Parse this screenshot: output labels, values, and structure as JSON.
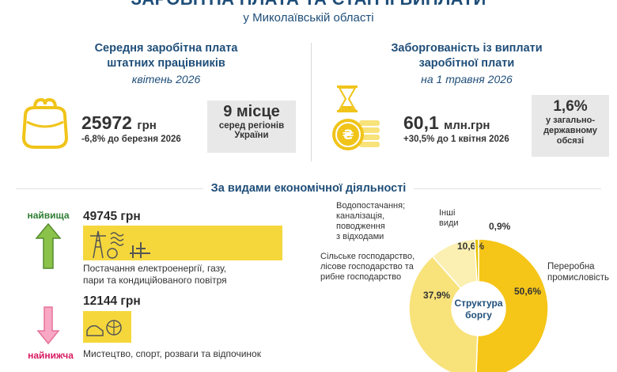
{
  "header": {
    "title": "ЗАРОБІТНА ПЛАТА ТА СТАН ЇЇ ВИПЛАТИ",
    "subtitle": "у Миколаївській області"
  },
  "salary": {
    "heading_line1": "Середня заробітна плата",
    "heading_line2": "штатних працівників",
    "period": "квітень 2026",
    "value": "25972",
    "unit": "грн",
    "change": "-6,8%  до березня 2026",
    "rank_value": "9 місце",
    "rank_line1": "серед регіонів",
    "rank_line2": "України",
    "icon": "wallet-icon"
  },
  "debt": {
    "heading_line1": "Заборгованість із виплати",
    "heading_line2": "заробітної плати",
    "period": "на 1 травня 2026",
    "value": "60,1",
    "unit": "млн.грн",
    "change": "+30,5%  до 1 квітня 2026",
    "share_value": "1,6%",
    "share_line1": "у загально-",
    "share_line2": "державному",
    "share_line3": "обсязі",
    "icon": "hourglass-coins-icon"
  },
  "activity": {
    "heading": "За видами економічної діяльності",
    "highest_label": "найвища",
    "lowest_label": "найнижча",
    "highest_value": "49745 грн",
    "highest_desc_line1": "Постачання електроенергії, газу,",
    "highest_desc_line2": "пари та кондиційованого повітря",
    "lowest_value": "12144 грн",
    "lowest_desc": "Мистецтво, спорт, розваги та відпочинок",
    "highest_ratio": 1.0,
    "lowest_ratio": 0.244
  },
  "debt_structure": {
    "center_line1": "Структура",
    "center_line2": "боргу",
    "slices": [
      {
        "label_lines": [
          "Переробна",
          "промисловість"
        ],
        "pct": "50,6%",
        "value": 50.6,
        "color": "#f5c518"
      },
      {
        "label_lines": [
          "Сільське господарство,",
          "лісове господарство та",
          "рибне господарство"
        ],
        "pct": "37,9%",
        "value": 37.9,
        "color": "#f8e27a"
      },
      {
        "label_lines": [
          "Водопостачання;",
          "каналізація,",
          "поводження",
          "з відходами"
        ],
        "pct": "10,6%",
        "value": 10.6,
        "color": "#fbefb2"
      },
      {
        "label_lines": [
          "Інші",
          "види"
        ],
        "pct": "0,9%",
        "value": 0.9,
        "color": "#e8c400"
      }
    ]
  }
}
